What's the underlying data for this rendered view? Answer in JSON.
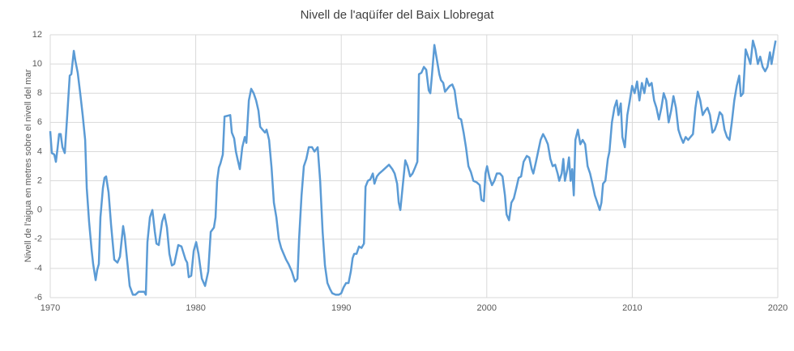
{
  "chart_data": {
    "type": "line",
    "title": "Nivell de l'aqüífer del Baix Llobregat",
    "y_label": "Nivell de l'aigua en metres sobre el nivell del mar",
    "color": "#5b9bd5",
    "grid": true,
    "xlim": [
      1970,
      2020
    ],
    "xticks": [
      1970,
      1980,
      1990,
      2000,
      2010,
      2020
    ],
    "ylim": [
      -6,
      12
    ],
    "yticks": [
      -6,
      -4,
      -2,
      0,
      2,
      4,
      6,
      8,
      10,
      12
    ],
    "x": [
      1970.0,
      1970.11,
      1970.28,
      1970.39,
      1970.5,
      1970.61,
      1970.72,
      1970.84,
      1971.0,
      1971.17,
      1971.34,
      1971.45,
      1971.62,
      1971.73,
      1971.89,
      1972.06,
      1972.23,
      1972.4,
      1972.51,
      1972.67,
      1972.84,
      1972.95,
      1973.12,
      1973.23,
      1973.34,
      1973.45,
      1973.62,
      1973.73,
      1973.84,
      1974.01,
      1974.18,
      1974.4,
      1974.62,
      1974.79,
      1975.01,
      1975.12,
      1975.29,
      1975.46,
      1975.68,
      1975.85,
      1976.07,
      1976.46,
      1976.57,
      1976.68,
      1976.85,
      1977.02,
      1977.19,
      1977.3,
      1977.46,
      1977.69,
      1977.85,
      1978.02,
      1978.19,
      1978.36,
      1978.52,
      1978.8,
      1979.02,
      1979.3,
      1979.41,
      1979.52,
      1979.69,
      1979.86,
      1980.03,
      1980.19,
      1980.42,
      1980.64,
      1980.86,
      1981.03,
      1981.25,
      1981.36,
      1981.47,
      1981.59,
      1981.7,
      1981.86,
      1981.98,
      1982.37,
      1982.48,
      1982.64,
      1982.76,
      1982.87,
      1983.03,
      1983.2,
      1983.37,
      1983.48,
      1983.65,
      1983.81,
      1983.98,
      1984.15,
      1984.31,
      1984.43,
      1984.59,
      1984.76,
      1984.87,
      1985.04,
      1985.21,
      1985.37,
      1985.54,
      1985.71,
      1985.87,
      1986.04,
      1986.21,
      1986.38,
      1986.6,
      1986.82,
      1986.99,
      1987.1,
      1987.27,
      1987.43,
      1987.6,
      1987.77,
      1987.99,
      1988.16,
      1988.38,
      1988.55,
      1988.72,
      1988.88,
      1989.05,
      1989.22,
      1989.38,
      1989.61,
      1989.83,
      1990.0,
      1990.16,
      1990.33,
      1990.5,
      1990.66,
      1990.78,
      1990.89,
      1991.05,
      1991.22,
      1991.39,
      1991.56,
      1991.67,
      1991.83,
      1992.0,
      1992.17,
      1992.28,
      1992.45,
      1992.61,
      1992.84,
      1993.06,
      1993.28,
      1993.51,
      1993.67,
      1993.84,
      1993.95,
      1994.06,
      1994.23,
      1994.4,
      1994.56,
      1994.73,
      1994.9,
      1995.07,
      1995.23,
      1995.29,
      1995.34,
      1995.51,
      1995.68,
      1995.84,
      1996.01,
      1996.12,
      1996.23,
      1996.4,
      1996.57,
      1996.74,
      1996.85,
      1997.01,
      1997.13,
      1997.29,
      1997.46,
      1997.63,
      1997.79,
      1997.91,
      1998.07,
      1998.24,
      1998.41,
      1998.57,
      1998.74,
      1998.91,
      1999.08,
      1999.3,
      1999.52,
      1999.63,
      1999.8,
      1999.91,
      2000.02,
      2000.19,
      2000.36,
      2000.52,
      2000.69,
      2000.91,
      2001.08,
      2001.25,
      2001.36,
      2001.53,
      2001.69,
      2001.86,
      2002.03,
      2002.19,
      2002.36,
      2002.53,
      2002.75,
      2002.92,
      2003.09,
      2003.2,
      2003.36,
      2003.53,
      2003.7,
      2003.87,
      2004.03,
      2004.2,
      2004.37,
      2004.53,
      2004.7,
      2004.87,
      2004.98,
      2005.15,
      2005.26,
      2005.37,
      2005.54,
      2005.65,
      2005.76,
      2005.87,
      2005.98,
      2006.09,
      2006.26,
      2006.43,
      2006.59,
      2006.76,
      2006.93,
      2007.1,
      2007.26,
      2007.43,
      2007.6,
      2007.76,
      2007.88,
      2007.99,
      2008.15,
      2008.32,
      2008.43,
      2008.6,
      2008.77,
      2008.93,
      2009.05,
      2009.21,
      2009.32,
      2009.49,
      2009.66,
      2009.83,
      2009.99,
      2010.16,
      2010.33,
      2010.49,
      2010.66,
      2010.83,
      2010.99,
      2011.16,
      2011.33,
      2011.5,
      2011.66,
      2011.83,
      2012.0,
      2012.16,
      2012.33,
      2012.5,
      2012.67,
      2012.83,
      2013.0,
      2013.17,
      2013.33,
      2013.5,
      2013.67,
      2013.84,
      2014.0,
      2014.17,
      2014.34,
      2014.5,
      2014.67,
      2014.84,
      2015.01,
      2015.17,
      2015.34,
      2015.51,
      2015.67,
      2015.84,
      2016.01,
      2016.18,
      2016.34,
      2016.51,
      2016.68,
      2016.84,
      2017.01,
      2017.18,
      2017.35,
      2017.46,
      2017.62,
      2017.79,
      2017.96,
      2018.12,
      2018.29,
      2018.46,
      2018.63,
      2018.79,
      2018.96,
      2019.13,
      2019.29,
      2019.46,
      2019.57,
      2019.74,
      2019.85
    ],
    "values": [
      5.4,
      3.9,
      3.8,
      3.3,
      4.2,
      5.2,
      5.2,
      4.3,
      3.9,
      6.5,
      9.2,
      9.3,
      10.9,
      10.2,
      9.4,
      8.0,
      6.5,
      4.8,
      1.5,
      -0.8,
      -2.7,
      -3.7,
      -4.8,
      -4.1,
      -3.7,
      -0.5,
      1.5,
      2.2,
      2.3,
      1.2,
      -1.0,
      -3.4,
      -3.6,
      -3.2,
      -1.1,
      -1.8,
      -3.5,
      -5.2,
      -5.8,
      -5.8,
      -5.6,
      -5.6,
      -5.8,
      -2.2,
      -0.5,
      0.0,
      -1.5,
      -2.3,
      -2.4,
      -0.8,
      -0.3,
      -1.2,
      -3.0,
      -3.8,
      -3.7,
      -2.4,
      -2.5,
      -3.4,
      -3.6,
      -4.6,
      -4.5,
      -2.8,
      -2.2,
      -3.0,
      -4.7,
      -5.2,
      -4.2,
      -1.5,
      -1.2,
      -0.5,
      2.0,
      2.9,
      3.2,
      3.8,
      6.4,
      6.5,
      5.3,
      4.9,
      4.0,
      3.5,
      2.8,
      4.3,
      5.0,
      4.6,
      7.5,
      8.3,
      8.0,
      7.5,
      6.8,
      5.7,
      5.5,
      5.3,
      5.5,
      4.8,
      2.9,
      0.5,
      -0.5,
      -2.0,
      -2.6,
      -3.0,
      -3.4,
      -3.7,
      -4.2,
      -4.9,
      -4.7,
      -2.0,
      1.0,
      3.0,
      3.5,
      4.3,
      4.3,
      4.0,
      4.3,
      2.0,
      -1.5,
      -3.8,
      -5.0,
      -5.4,
      -5.7,
      -5.8,
      -5.8,
      -5.7,
      -5.3,
      -5.0,
      -5.0,
      -4.2,
      -3.3,
      -3.0,
      -3.0,
      -2.5,
      -2.6,
      -2.3,
      1.6,
      2.0,
      2.1,
      2.5,
      1.8,
      2.3,
      2.5,
      2.7,
      2.9,
      3.1,
      2.8,
      2.5,
      1.8,
      0.5,
      0.0,
      1.7,
      3.4,
      3.0,
      2.3,
      2.5,
      2.9,
      3.3,
      6.0,
      9.3,
      9.4,
      9.8,
      9.6,
      8.2,
      8.0,
      9.2,
      11.3,
      10.3,
      9.3,
      8.9,
      8.7,
      8.1,
      8.3,
      8.5,
      8.6,
      8.2,
      7.3,
      6.3,
      6.2,
      5.3,
      4.3,
      3.0,
      2.6,
      2.0,
      1.9,
      1.7,
      0.7,
      0.6,
      2.5,
      3.0,
      2.2,
      1.7,
      2.0,
      2.5,
      2.5,
      2.3,
      1.0,
      -0.3,
      -0.7,
      0.5,
      0.8,
      1.5,
      2.2,
      2.3,
      3.3,
      3.7,
      3.6,
      2.8,
      2.5,
      3.2,
      4.0,
      4.8,
      5.2,
      4.9,
      4.5,
      3.5,
      3.0,
      3.1,
      2.5,
      2.0,
      2.5,
      3.5,
      2.0,
      2.8,
      3.6,
      2.0,
      2.8,
      1.0,
      4.8,
      5.5,
      4.5,
      4.8,
      4.5,
      3.0,
      2.5,
      1.8,
      1.0,
      0.5,
      0.0,
      0.5,
      1.8,
      2.0,
      3.5,
      4.0,
      6.0,
      7.0,
      7.5,
      6.5,
      7.3,
      5.0,
      4.3,
      6.5,
      7.5,
      8.5,
      8.0,
      8.8,
      7.5,
      8.7,
      8.0,
      9.0,
      8.5,
      8.7,
      7.5,
      7.0,
      6.2,
      7.0,
      8.0,
      7.5,
      6.0,
      6.8,
      7.8,
      7.0,
      5.5,
      5.0,
      4.6,
      5.0,
      4.8,
      5.0,
      5.2,
      7.0,
      8.1,
      7.5,
      6.5,
      6.8,
      7.0,
      6.5,
      5.3,
      5.5,
      6.0,
      6.7,
      6.5,
      5.5,
      5.0,
      4.8,
      6.0,
      7.5,
      8.5,
      9.2,
      7.8,
      8.0,
      11.0,
      10.5,
      10.0,
      11.6,
      11.0,
      10.0,
      10.5,
      9.8,
      9.5,
      9.8,
      10.8,
      10.0,
      11.0,
      11.6
    ]
  }
}
